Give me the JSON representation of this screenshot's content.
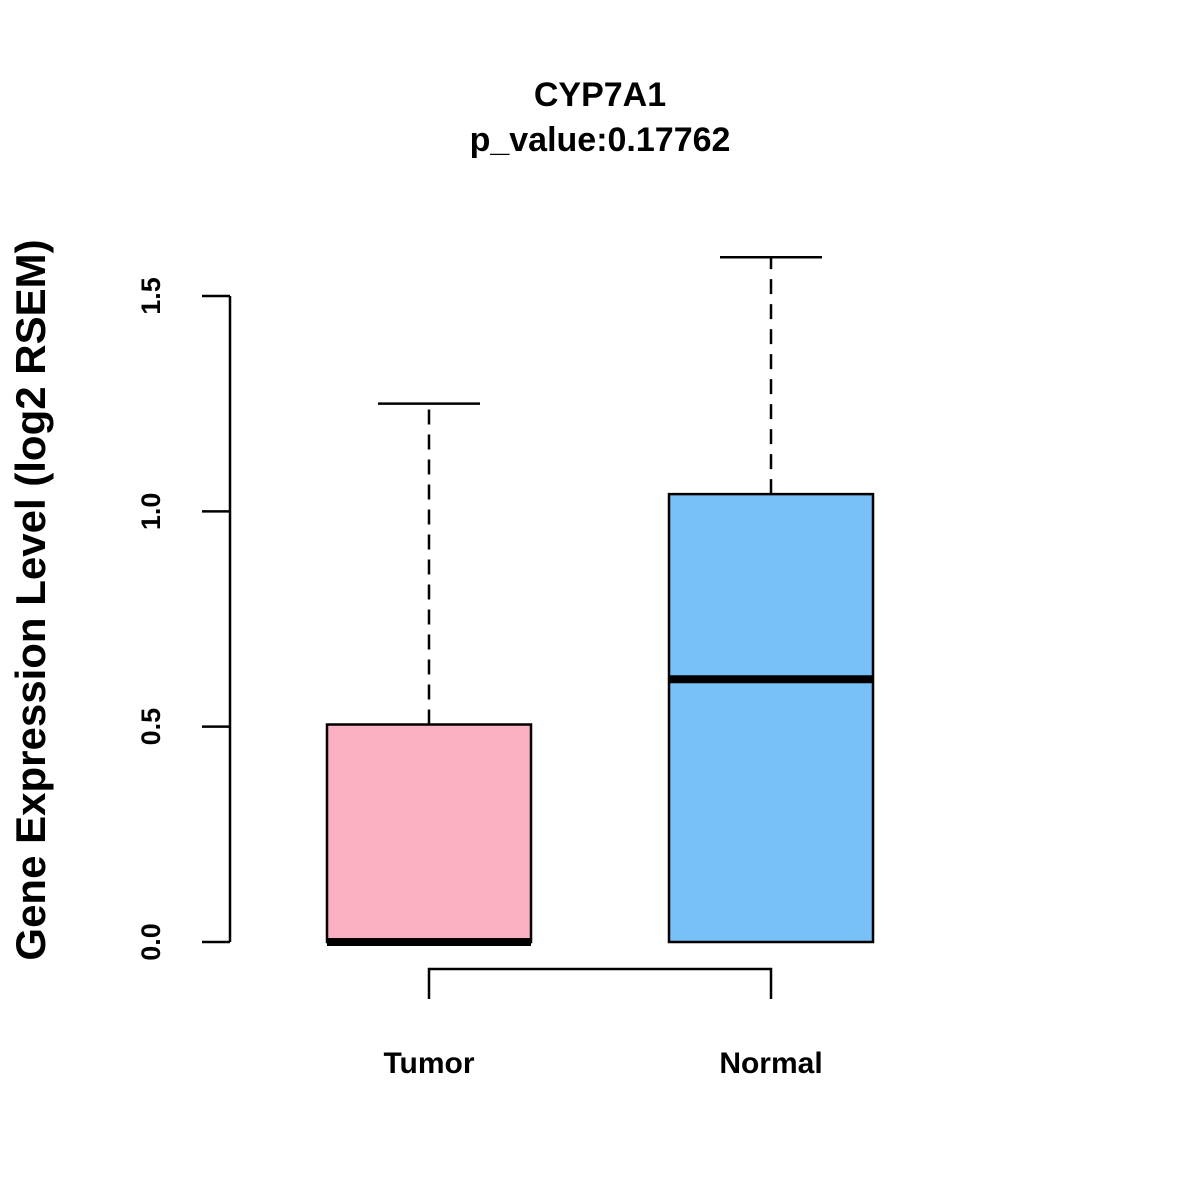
{
  "chart_data": {
    "type": "boxplot",
    "title": "CYP7A1",
    "subtitle": "p_value:0.17762",
    "xlabel": "",
    "ylabel": "Gene Expression Level (log2 RSEM)",
    "ylim": [
      0,
      1.5
    ],
    "yticks": [
      0,
      0.5,
      1,
      1.5
    ],
    "ytick_labels": [
      "0.0",
      "0.5",
      "1.0",
      "1.5"
    ],
    "categories": [
      "Tumor",
      "Normal"
    ],
    "boxes": [
      {
        "name": "Tumor",
        "min": 0.0,
        "q1": 0.0,
        "median": 0.0,
        "q3": 0.505,
        "max": 1.25,
        "color": "#FBB1C1"
      },
      {
        "name": "Normal",
        "min": 0.0,
        "q1": 0.0,
        "median": 0.61,
        "q3": 1.04,
        "max": 1.59,
        "color": "#77C1F8"
      }
    ],
    "comparison_bracket": [
      "Tumor",
      "Normal"
    ]
  }
}
